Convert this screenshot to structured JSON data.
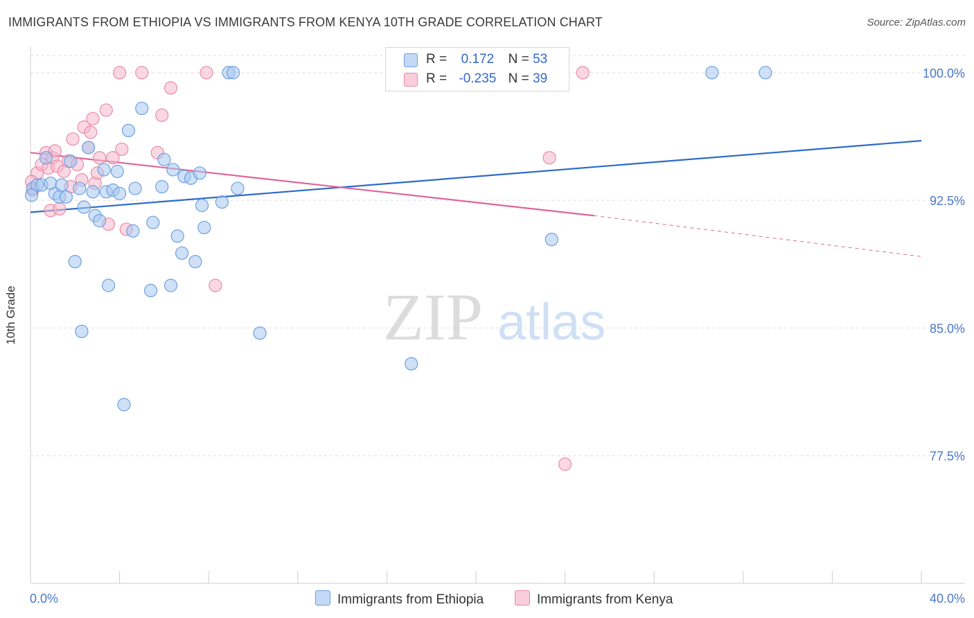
{
  "title": "IMMIGRANTS FROM ETHIOPIA VS IMMIGRANTS FROM KENYA 10TH GRADE CORRELATION CHART",
  "source": "Source: ZipAtlas.com",
  "watermark": {
    "zip": "ZIP",
    "atlas": "atlas"
  },
  "legend": {
    "r_label": "R =",
    "n_label": "N =",
    "rows": [
      {
        "r": "0.172",
        "n": "53",
        "color": "#a8c8f0"
      },
      {
        "r": "-0.235",
        "n": "39",
        "color": "#f6b8cc"
      }
    ]
  },
  "colors": {
    "blue_fill": "#a8c8f0",
    "blue_stroke": "#6e9fe0",
    "blue_line": "#2c6bc9",
    "pink_fill": "#f6b8cc",
    "pink_stroke": "#e98aa8",
    "pink_line": "#e0649a",
    "tick_text": "#4a78c8",
    "grid": "#dddddd"
  },
  "chart_data": {
    "type": "scatter",
    "title": "IMMIGRANTS FROM ETHIOPIA VS IMMIGRANTS FROM KENYA 10TH GRADE CORRELATION CHART",
    "xlabel": "",
    "ylabel": "10th Grade",
    "xlim": [
      0,
      40
    ],
    "ylim": [
      70.0,
      101.5
    ],
    "x_tick_labels": [
      "0.0%",
      "40.0%"
    ],
    "y_ticks": [
      77.5,
      85.0,
      92.5,
      100.0
    ],
    "y_tick_labels": [
      "77.5%",
      "85.0%",
      "92.5%",
      "100.0%"
    ],
    "grid": true,
    "legend_position": "top-center",
    "series": [
      {
        "name": "Immigrants from Ethiopia",
        "points": [
          [
            0.1,
            93.2
          ],
          [
            0.3,
            93.4
          ],
          [
            0.5,
            93.4
          ],
          [
            0.7,
            95.0
          ],
          [
            0.9,
            93.5
          ],
          [
            1.1,
            92.9
          ],
          [
            1.3,
            92.7
          ],
          [
            1.4,
            93.4
          ],
          [
            1.6,
            92.7
          ],
          [
            1.8,
            94.8
          ],
          [
            2.0,
            88.9
          ],
          [
            2.2,
            93.2
          ],
          [
            2.3,
            84.8
          ],
          [
            2.4,
            92.1
          ],
          [
            2.6,
            95.6
          ],
          [
            2.8,
            93.0
          ],
          [
            2.9,
            91.6
          ],
          [
            3.1,
            91.3
          ],
          [
            3.3,
            94.3
          ],
          [
            3.4,
            93.0
          ],
          [
            3.5,
            87.5
          ],
          [
            3.7,
            93.1
          ],
          [
            3.9,
            94.2
          ],
          [
            4.0,
            92.9
          ],
          [
            4.2,
            80.5
          ],
          [
            4.4,
            96.6
          ],
          [
            4.6,
            90.7
          ],
          [
            4.7,
            93.2
          ],
          [
            5.0,
            97.9
          ],
          [
            5.4,
            87.2
          ],
          [
            5.5,
            91.2
          ],
          [
            5.9,
            93.3
          ],
          [
            6.0,
            94.9
          ],
          [
            6.3,
            87.5
          ],
          [
            6.4,
            94.3
          ],
          [
            6.6,
            90.4
          ],
          [
            6.8,
            89.4
          ],
          [
            6.9,
            93.9
          ],
          [
            7.2,
            93.8
          ],
          [
            7.4,
            88.9
          ],
          [
            7.6,
            94.1
          ],
          [
            7.7,
            92.2
          ],
          [
            7.8,
            90.9
          ],
          [
            8.6,
            92.4
          ],
          [
            8.9,
            100.0
          ],
          [
            9.1,
            100.0
          ],
          [
            9.3,
            93.2
          ],
          [
            10.3,
            84.7
          ],
          [
            17.1,
            82.9
          ],
          [
            23.4,
            90.2
          ],
          [
            30.6,
            100.0
          ],
          [
            33.0,
            100.0
          ],
          [
            0.05,
            92.8
          ]
        ],
        "trend": {
          "x": [
            0,
            40
          ],
          "y": [
            91.8,
            96.0
          ],
          "style": "solid"
        }
      },
      {
        "name": "Immigrants from Kenya",
        "points": [
          [
            0.1,
            93.1
          ],
          [
            0.3,
            94.1
          ],
          [
            0.5,
            94.6
          ],
          [
            0.7,
            95.3
          ],
          [
            0.8,
            94.4
          ],
          [
            0.9,
            91.9
          ],
          [
            1.0,
            95.0
          ],
          [
            1.1,
            95.4
          ],
          [
            1.2,
            94.5
          ],
          [
            1.3,
            92.0
          ],
          [
            1.5,
            94.2
          ],
          [
            1.7,
            94.8
          ],
          [
            1.8,
            93.3
          ],
          [
            1.9,
            96.1
          ],
          [
            2.1,
            94.6
          ],
          [
            2.3,
            93.7
          ],
          [
            2.4,
            96.8
          ],
          [
            2.6,
            95.6
          ],
          [
            2.7,
            96.5
          ],
          [
            2.8,
            97.3
          ],
          [
            2.9,
            93.5
          ],
          [
            3.0,
            94.1
          ],
          [
            3.1,
            95.0
          ],
          [
            3.4,
            97.8
          ],
          [
            3.5,
            91.1
          ],
          [
            3.7,
            95.0
          ],
          [
            4.0,
            100.0
          ],
          [
            4.1,
            95.5
          ],
          [
            4.3,
            90.8
          ],
          [
            5.0,
            100.0
          ],
          [
            5.7,
            95.3
          ],
          [
            5.9,
            97.5
          ],
          [
            6.3,
            99.1
          ],
          [
            7.9,
            100.0
          ],
          [
            8.3,
            87.5
          ],
          [
            23.3,
            95.0
          ],
          [
            24.8,
            100.0
          ],
          [
            24.0,
            77.0
          ],
          [
            0.05,
            93.6
          ]
        ],
        "trend": {
          "x": [
            0,
            25.3
          ],
          "y": [
            95.3,
            91.6
          ],
          "style": "solid",
          "extension": {
            "x": [
              25.3,
              40
            ],
            "y": [
              91.6,
              89.2
            ],
            "style": "dashed"
          }
        }
      }
    ]
  }
}
